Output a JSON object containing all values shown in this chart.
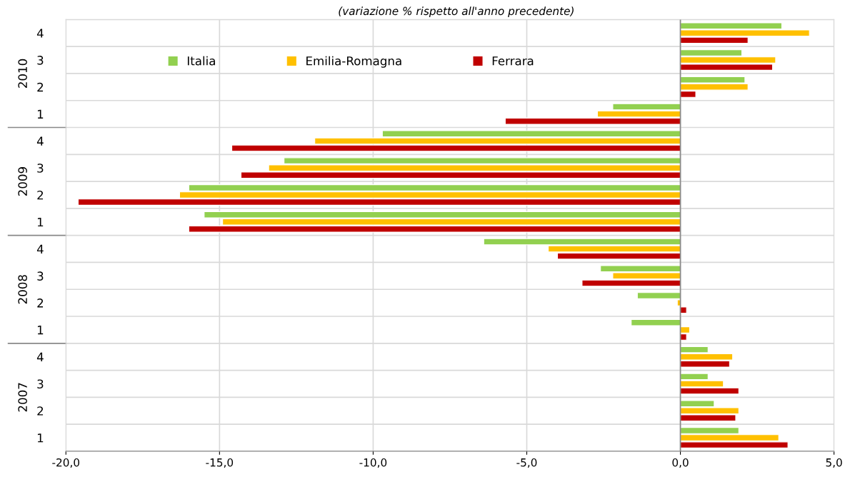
{
  "chart_data": {
    "type": "bar",
    "orientation": "horizontal",
    "subtitle": "(variazione % rispetto all'anno precedente)",
    "categories": [
      "4",
      "3",
      "2",
      "1",
      "4",
      "3",
      "2",
      "1",
      "4",
      "3",
      "2",
      "1",
      "4",
      "3",
      "2",
      "1"
    ],
    "annotations": [
      "2010",
      "2009",
      "2008",
      "2007"
    ],
    "series": [
      {
        "name": "Italia",
        "color": "#92d050",
        "values": [
          3.3,
          2.0,
          2.1,
          -2.2,
          -9.7,
          -12.9,
          -16.0,
          -15.5,
          -6.4,
          -2.6,
          -1.4,
          -1.6,
          0.9,
          0.9,
          1.1,
          1.9
        ]
      },
      {
        "name": "Emilia-Romagna",
        "color": "#ffc000",
        "values": [
          4.2,
          3.1,
          2.2,
          -2.7,
          -11.9,
          -13.4,
          -16.3,
          -14.9,
          -4.3,
          -2.2,
          -0.1,
          0.3,
          1.7,
          1.4,
          1.9,
          3.2
        ]
      },
      {
        "name": "Ferrara",
        "color": "#c00000",
        "values": [
          2.2,
          3.0,
          0.5,
          -5.7,
          -14.6,
          -14.3,
          -19.6,
          -16.0,
          -4.0,
          -3.2,
          0.2,
          0.2,
          1.6,
          1.9,
          1.8,
          3.5
        ]
      }
    ],
    "xlim": [
      -20,
      5
    ],
    "xticks": [
      {
        "value": -20,
        "label": "-20,0"
      },
      {
        "value": -15,
        "label": "-15,0"
      },
      {
        "value": -10,
        "label": "-10,0"
      },
      {
        "value": -5,
        "label": "-5,0"
      },
      {
        "value": 0,
        "label": "0,0"
      },
      {
        "value": 5,
        "label": "5,0"
      }
    ],
    "grid": true,
    "legend": "top left"
  }
}
